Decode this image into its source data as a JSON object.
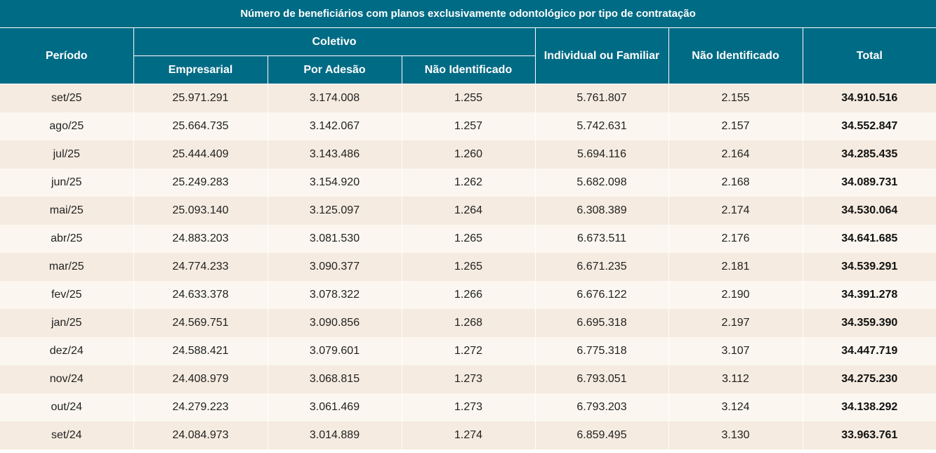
{
  "table": {
    "title": "Número de beneficiários com planos exclusivamente odontológico por tipo de contratação",
    "headers": {
      "periodo": "Período",
      "coletivo": "Coletivo",
      "empresarial": "Empresarial",
      "por_adesao": "Por Adesão",
      "nao_identificado_coletivo": "Não Identificado",
      "individual_familiar": "Individual ou Familiar",
      "nao_identificado": "Não Identificado",
      "total": "Total"
    },
    "rows": [
      [
        "set/25",
        "25.971.291",
        "3.174.008",
        "1.255",
        "5.761.807",
        "2.155",
        "34.910.516"
      ],
      [
        "ago/25",
        "25.664.735",
        "3.142.067",
        "1.257",
        "5.742.631",
        "2.157",
        "34.552.847"
      ],
      [
        "jul/25",
        "25.444.409",
        "3.143.486",
        "1.260",
        "5.694.116",
        "2.164",
        "34.285.435"
      ],
      [
        "jun/25",
        "25.249.283",
        "3.154.920",
        "1.262",
        "5.682.098",
        "2.168",
        "34.089.731"
      ],
      [
        "mai/25",
        "25.093.140",
        "3.125.097",
        "1.264",
        "6.308.389",
        "2.174",
        "34.530.064"
      ],
      [
        "abr/25",
        "24.883.203",
        "3.081.530",
        "1.265",
        "6.673.511",
        "2.176",
        "34.641.685"
      ],
      [
        "mar/25",
        "24.774.233",
        "3.090.377",
        "1.265",
        "6.671.235",
        "2.181",
        "34.539.291"
      ],
      [
        "fev/25",
        "24.633.378",
        "3.078.322",
        "1.266",
        "6.676.122",
        "2.190",
        "34.391.278"
      ],
      [
        "jan/25",
        "24.569.751",
        "3.090.856",
        "1.268",
        "6.695.318",
        "2.197",
        "34.359.390"
      ],
      [
        "dez/24",
        "24.588.421",
        "3.079.601",
        "1.272",
        "6.775.318",
        "3.107",
        "34.447.719"
      ],
      [
        "nov/24",
        "24.408.979",
        "3.068.815",
        "1.273",
        "6.793.051",
        "3.112",
        "34.275.230"
      ],
      [
        "out/24",
        "24.279.223",
        "3.061.469",
        "1.273",
        "6.793.203",
        "3.124",
        "34.138.292"
      ],
      [
        "set/24",
        "24.084.973",
        "3.014.889",
        "1.274",
        "6.859.495",
        "3.130",
        "33.963.761"
      ]
    ]
  },
  "colors": {
    "header_bg": "#006b85",
    "row_odd": "#f5ebe0",
    "row_even": "#fbf7f0"
  }
}
